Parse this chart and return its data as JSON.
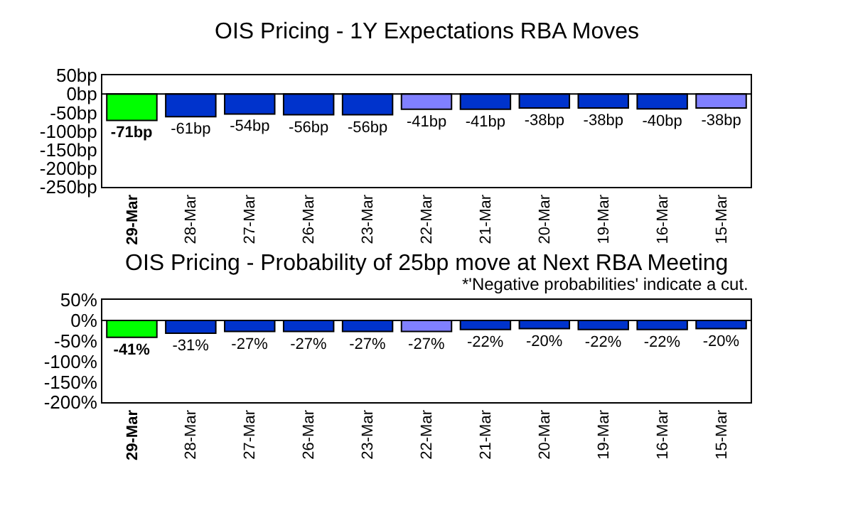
{
  "chart_data": [
    {
      "type": "bar",
      "title": "OIS Pricing - 1Y Expectations RBA Moves",
      "categories": [
        "29-Mar",
        "28-Mar",
        "27-Mar",
        "26-Mar",
        "23-Mar",
        "22-Mar",
        "21-Mar",
        "20-Mar",
        "19-Mar",
        "16-Mar",
        "15-Mar"
      ],
      "values": [
        -71,
        -61,
        -54,
        -56,
        -56,
        -41,
        -41,
        -38,
        -38,
        -40,
        -38
      ],
      "colors": [
        "#00ff00",
        "#0033cc",
        "#0033cc",
        "#0033cc",
        "#0033cc",
        "#8080ff",
        "#0033cc",
        "#0033cc",
        "#0033cc",
        "#0033cc",
        "#8080ff"
      ],
      "value_labels": [
        "-71bp",
        "-61bp",
        "-54bp",
        "-56bp",
        "-56bp",
        "-41bp",
        "-41bp",
        "-38bp",
        "-38bp",
        "-40bp",
        "-38bp"
      ],
      "ylim": [
        -250,
        50
      ],
      "yticks": [
        {
          "value": 50,
          "label": "50bp"
        },
        {
          "value": 0,
          "label": "0bp"
        },
        {
          "value": -50,
          "label": "-50bp"
        },
        {
          "value": -100,
          "label": "-100bp"
        },
        {
          "value": -150,
          "label": "-150bp"
        },
        {
          "value": -200,
          "label": "-200bp"
        },
        {
          "value": -250,
          "label": "-250bp"
        }
      ],
      "ref_lines": [
        {
          "axis": "y",
          "value": 0,
          "color": "#000000"
        }
      ]
    },
    {
      "type": "bar",
      "title": "OIS Pricing - Probability of 25bp move at Next RBA Meeting",
      "annotations": [
        "*'Negative probabilities' indicate a cut."
      ],
      "categories": [
        "29-Mar",
        "28-Mar",
        "27-Mar",
        "26-Mar",
        "23-Mar",
        "22-Mar",
        "21-Mar",
        "20-Mar",
        "19-Mar",
        "16-Mar",
        "15-Mar"
      ],
      "values": [
        -41,
        -31,
        -27,
        -27,
        -27,
        -27,
        -22,
        -20,
        -22,
        -22,
        -20
      ],
      "colors": [
        "#00ff00",
        "#0033cc",
        "#0033cc",
        "#0033cc",
        "#0033cc",
        "#8080ff",
        "#0033cc",
        "#0033cc",
        "#0033cc",
        "#0033cc",
        "#0033cc"
      ],
      "value_labels": [
        "-41%",
        "-31%",
        "-27%",
        "-27%",
        "-27%",
        "-27%",
        "-22%",
        "-20%",
        "-22%",
        "-22%",
        "-20%"
      ],
      "ylim": [
        -200,
        50
      ],
      "yticks": [
        {
          "value": 50,
          "label": "50%"
        },
        {
          "value": 0,
          "label": "0%"
        },
        {
          "value": -50,
          "label": "-50%"
        },
        {
          "value": -100,
          "label": "-100%"
        },
        {
          "value": -150,
          "label": "-150%"
        },
        {
          "value": -200,
          "label": "-200%"
        }
      ],
      "ref_lines": [
        {
          "axis": "y",
          "value": 0,
          "color": "#000000"
        }
      ]
    }
  ]
}
